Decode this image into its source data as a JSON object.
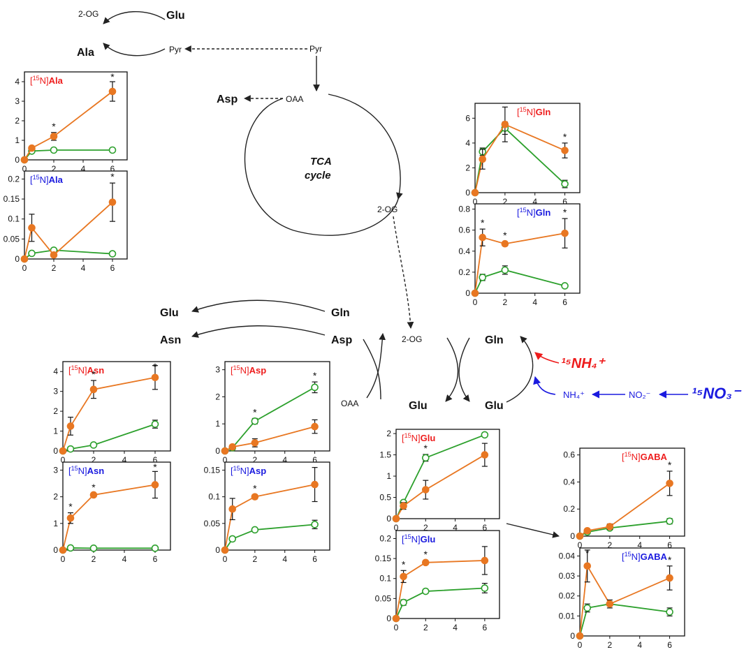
{
  "colors": {
    "treated": "#e87722",
    "control": "#2ca02c",
    "label_red": "#ee1c1c",
    "label_blue": "#1a1adf",
    "arrow": "#222222"
  },
  "nodes": {
    "glu_top": "Glu",
    "og_top": "2-OG",
    "ala": "Ala",
    "pyr_left": "Pyr",
    "pyr_right": "Pyr",
    "asp_top": "Asp",
    "oaa_top": "OAA",
    "tca_line1": "TCA",
    "tca_line2": "cycle",
    "og_tca": "2-OG",
    "glu_mid": "Glu",
    "asn_mid": "Asn",
    "gln_mid": "Gln",
    "asp_mid": "Asp",
    "og_center": "2-OG",
    "oaa_center": "OAA",
    "gln_right": "Gln",
    "glu_left_bottom": "Glu",
    "glu_right_bottom": "Glu",
    "nh4_plain": "NH₄⁺",
    "no2": "NO₂⁻",
    "nh4_labeled": "¹⁵NH₄⁺",
    "no3_labeled": "¹⁵NO₃⁻"
  },
  "chart_data": [
    {
      "type": "line",
      "title_prefix": "[15N]",
      "title_name": "Ala",
      "title_color": "red",
      "x": [
        0,
        0.5,
        2,
        6
      ],
      "xticks": [
        0,
        2,
        4,
        6
      ],
      "ylim": [
        0,
        4.5
      ],
      "yticks": [
        0,
        1,
        2,
        3,
        4
      ],
      "ytick_labels": [
        "0",
        "1",
        "2",
        "3",
        "4"
      ],
      "series": [
        {
          "values": [
            0,
            0.6,
            1.2,
            3.5
          ],
          "err": [
            0,
            0.1,
            0.2,
            0.5
          ]
        },
        {
          "values": [
            0,
            0.45,
            0.5,
            0.5
          ],
          "err": [
            0,
            0.05,
            0.05,
            0.05
          ]
        }
      ],
      "stars": [
        2,
        6
      ]
    },
    {
      "type": "line",
      "title_prefix": "[15N]",
      "title_name": "Ala",
      "title_color": "blue",
      "x": [
        0,
        0.5,
        2,
        6
      ],
      "xticks": [
        0,
        2,
        4,
        6
      ],
      "ylim": [
        0,
        0.22
      ],
      "yticks": [
        0,
        0.05,
        0.1,
        0.15,
        0.2
      ],
      "ytick_labels": [
        "0",
        "0.05",
        "0.1",
        "0.15",
        "0.2"
      ],
      "series": [
        {
          "values": [
            0,
            0.078,
            0.01,
            0.142
          ],
          "err": [
            0,
            0.034,
            0.005,
            0.048
          ]
        },
        {
          "values": [
            0,
            0.014,
            0.022,
            0.013
          ],
          "err": [
            0,
            0.004,
            0.003,
            0.002
          ]
        }
      ],
      "stars": [
        6
      ]
    },
    {
      "type": "line",
      "title_prefix": "[15N]",
      "title_name": "Gln",
      "title_color": "red",
      "x": [
        0,
        0.5,
        2,
        6
      ],
      "xticks": [
        0,
        2,
        4,
        6
      ],
      "ylim": [
        0,
        7.2
      ],
      "yticks": [
        0,
        2,
        4,
        6
      ],
      "ytick_labels": [
        "0",
        "2",
        "4",
        "6"
      ],
      "series": [
        {
          "values": [
            0,
            2.7,
            5.5,
            3.4
          ],
          "err": [
            0,
            0.8,
            1.4,
            0.6
          ]
        },
        {
          "values": [
            0,
            3.3,
            5.2,
            0.7
          ],
          "err": [
            0,
            0.3,
            0.5,
            0.3
          ]
        }
      ],
      "stars": [
        6
      ]
    },
    {
      "type": "line",
      "title_prefix": "[15N]",
      "title_name": "Gln",
      "title_color": "blue",
      "x": [
        0,
        0.5,
        2,
        6
      ],
      "xticks": [
        0,
        2,
        4,
        6
      ],
      "ylim": [
        0,
        0.85
      ],
      "yticks": [
        0,
        0.2,
        0.4,
        0.6,
        0.8
      ],
      "ytick_labels": [
        "0",
        "0.2",
        "0.4",
        "0.6",
        "0.8"
      ],
      "series": [
        {
          "values": [
            0,
            0.53,
            0.47,
            0.57
          ],
          "err": [
            0,
            0.08,
            0.02,
            0.14
          ]
        },
        {
          "values": [
            0,
            0.15,
            0.22,
            0.07
          ],
          "err": [
            0,
            0.03,
            0.04,
            0.01
          ]
        }
      ],
      "stars": [
        0.5,
        2,
        6
      ]
    },
    {
      "type": "line",
      "title_prefix": "[15N]",
      "title_name": "Asn",
      "title_color": "red",
      "x": [
        0,
        0.5,
        2,
        6
      ],
      "xticks": [
        0,
        2,
        4,
        6
      ],
      "ylim": [
        0,
        4.5
      ],
      "yticks": [
        0,
        1,
        2,
        3,
        4
      ],
      "ytick_labels": [
        "0",
        "1",
        "2",
        "3",
        "4"
      ],
      "series": [
        {
          "values": [
            0,
            1.25,
            3.1,
            3.7
          ],
          "err": [
            0,
            0.45,
            0.45,
            0.6
          ]
        },
        {
          "values": [
            0,
            0.1,
            0.3,
            1.35
          ],
          "err": [
            0,
            0.05,
            0.05,
            0.2
          ]
        }
      ],
      "stars": [
        2,
        6
      ]
    },
    {
      "type": "line",
      "title_prefix": "[15N]",
      "title_name": "Asn",
      "title_color": "blue",
      "x": [
        0,
        0.5,
        2,
        6
      ],
      "xticks": [
        0,
        2,
        4,
        6
      ],
      "ylim": [
        0,
        3.3
      ],
      "yticks": [
        0,
        1,
        2,
        3
      ],
      "ytick_labels": [
        "0",
        "1",
        "2",
        "3"
      ],
      "series": [
        {
          "values": [
            0,
            1.2,
            2.07,
            2.45
          ],
          "err": [
            0,
            0.2,
            0.05,
            0.5
          ]
        },
        {
          "values": [
            0,
            0.08,
            0.07,
            0.07
          ],
          "err": [
            0,
            0.02,
            0.02,
            0.02
          ]
        }
      ],
      "stars": [
        0.5,
        2,
        6
      ]
    },
    {
      "type": "line",
      "title_prefix": "[15N]",
      "title_name": "Asp",
      "title_color": "red",
      "x": [
        0,
        0.5,
        2,
        6
      ],
      "xticks": [
        0,
        2,
        4,
        6
      ],
      "ylim": [
        0,
        3.3
      ],
      "yticks": [
        0,
        1,
        2,
        3
      ],
      "ytick_labels": [
        "0",
        "1",
        "2",
        "3"
      ],
      "series": [
        {
          "values": [
            0,
            0.15,
            0.3,
            0.9
          ],
          "err": [
            0,
            0.05,
            0.15,
            0.25
          ]
        },
        {
          "values": [
            0,
            0.12,
            1.1,
            2.35
          ],
          "err": [
            0,
            0.03,
            0.1,
            0.2
          ]
        }
      ],
      "stars": [
        2,
        6
      ]
    },
    {
      "type": "line",
      "title_prefix": "[15N]",
      "title_name": "Asp",
      "title_color": "blue",
      "x": [
        0,
        0.5,
        2,
        6
      ],
      "xticks": [
        0,
        2,
        4,
        6
      ],
      "ylim": [
        0,
        0.165
      ],
      "yticks": [
        0,
        0.05,
        0.1,
        0.15
      ],
      "ytick_labels": [
        "0",
        "0.05",
        "0.1",
        "0.15"
      ],
      "series": [
        {
          "values": [
            0,
            0.077,
            0.1,
            0.123
          ],
          "err": [
            0,
            0.02,
            0.004,
            0.032
          ]
        },
        {
          "values": [
            0,
            0.021,
            0.038,
            0.048
          ],
          "err": [
            0,
            0.004,
            0.003,
            0.008
          ]
        }
      ],
      "stars": [
        2
      ]
    },
    {
      "type": "line",
      "title_prefix": "[15N]",
      "title_name": "Glu",
      "title_color": "red",
      "x": [
        0,
        0.5,
        2,
        6
      ],
      "xticks": [
        0,
        2,
        4,
        6
      ],
      "ylim": [
        0,
        2.1
      ],
      "yticks": [
        0,
        0.5,
        1,
        1.5,
        2
      ],
      "ytick_labels": [
        "0",
        "0.5",
        "1",
        "1.5",
        "2"
      ],
      "series": [
        {
          "values": [
            0,
            0.3,
            0.68,
            1.5
          ],
          "err": [
            0,
            0.08,
            0.22,
            0.27
          ]
        },
        {
          "values": [
            0,
            0.38,
            1.43,
            1.97
          ],
          "err": [
            0,
            0.04,
            0.08,
            0.03
          ]
        }
      ],
      "stars": [
        2
      ]
    },
    {
      "type": "line",
      "title_prefix": "[15N]",
      "title_name": "Glu",
      "title_color": "blue",
      "x": [
        0,
        0.5,
        2,
        6
      ],
      "xticks": [
        0,
        2,
        4,
        6
      ],
      "ylim": [
        0,
        0.22
      ],
      "yticks": [
        0,
        0.05,
        0.1,
        0.15,
        0.2
      ],
      "ytick_labels": [
        "0",
        "0.05",
        "0.1",
        "0.15",
        "0.2"
      ],
      "series": [
        {
          "values": [
            0,
            0.105,
            0.14,
            0.145
          ],
          "err": [
            0,
            0.015,
            0.005,
            0.035
          ]
        },
        {
          "values": [
            0,
            0.04,
            0.068,
            0.076
          ],
          "err": [
            0,
            0.007,
            0.005,
            0.012
          ]
        }
      ],
      "stars": [
        0.5,
        2
      ]
    },
    {
      "type": "line",
      "title_prefix": "[15N]",
      "title_name": "GABA",
      "title_color": "red",
      "x": [
        0,
        0.5,
        2,
        6
      ],
      "xticks": [
        0,
        2,
        4,
        6
      ],
      "ylim": [
        0,
        0.65
      ],
      "yticks": [
        0,
        0.2,
        0.4,
        0.6
      ],
      "ytick_labels": [
        "0",
        "0.2",
        "0.4",
        "0.6"
      ],
      "series": [
        {
          "values": [
            0,
            0.04,
            0.07,
            0.39
          ],
          "err": [
            0,
            0.01,
            0.02,
            0.09
          ]
        },
        {
          "values": [
            0,
            0.03,
            0.06,
            0.11
          ],
          "err": [
            0,
            0.01,
            0.01,
            0.02
          ]
        }
      ],
      "stars": [
        6
      ]
    },
    {
      "type": "line",
      "title_prefix": "[15N]",
      "title_name": "GABA",
      "title_color": "blue",
      "x": [
        0,
        0.5,
        2,
        6
      ],
      "xticks": [
        0,
        2,
        4,
        6
      ],
      "ylim": [
        0,
        0.044
      ],
      "yticks": [
        0,
        0.01,
        0.02,
        0.03,
        0.04
      ],
      "ytick_labels": [
        "0",
        "0.01",
        "0.02",
        "0.03",
        "0.04"
      ],
      "series": [
        {
          "values": [
            0,
            0.035,
            0.016,
            0.029
          ],
          "err": [
            0,
            0.008,
            0.002,
            0.006
          ]
        },
        {
          "values": [
            0,
            0.014,
            0.016,
            0.012
          ],
          "err": [
            0,
            0.002,
            0.001,
            0.002
          ]
        }
      ],
      "stars": [
        0.5,
        6
      ]
    }
  ]
}
